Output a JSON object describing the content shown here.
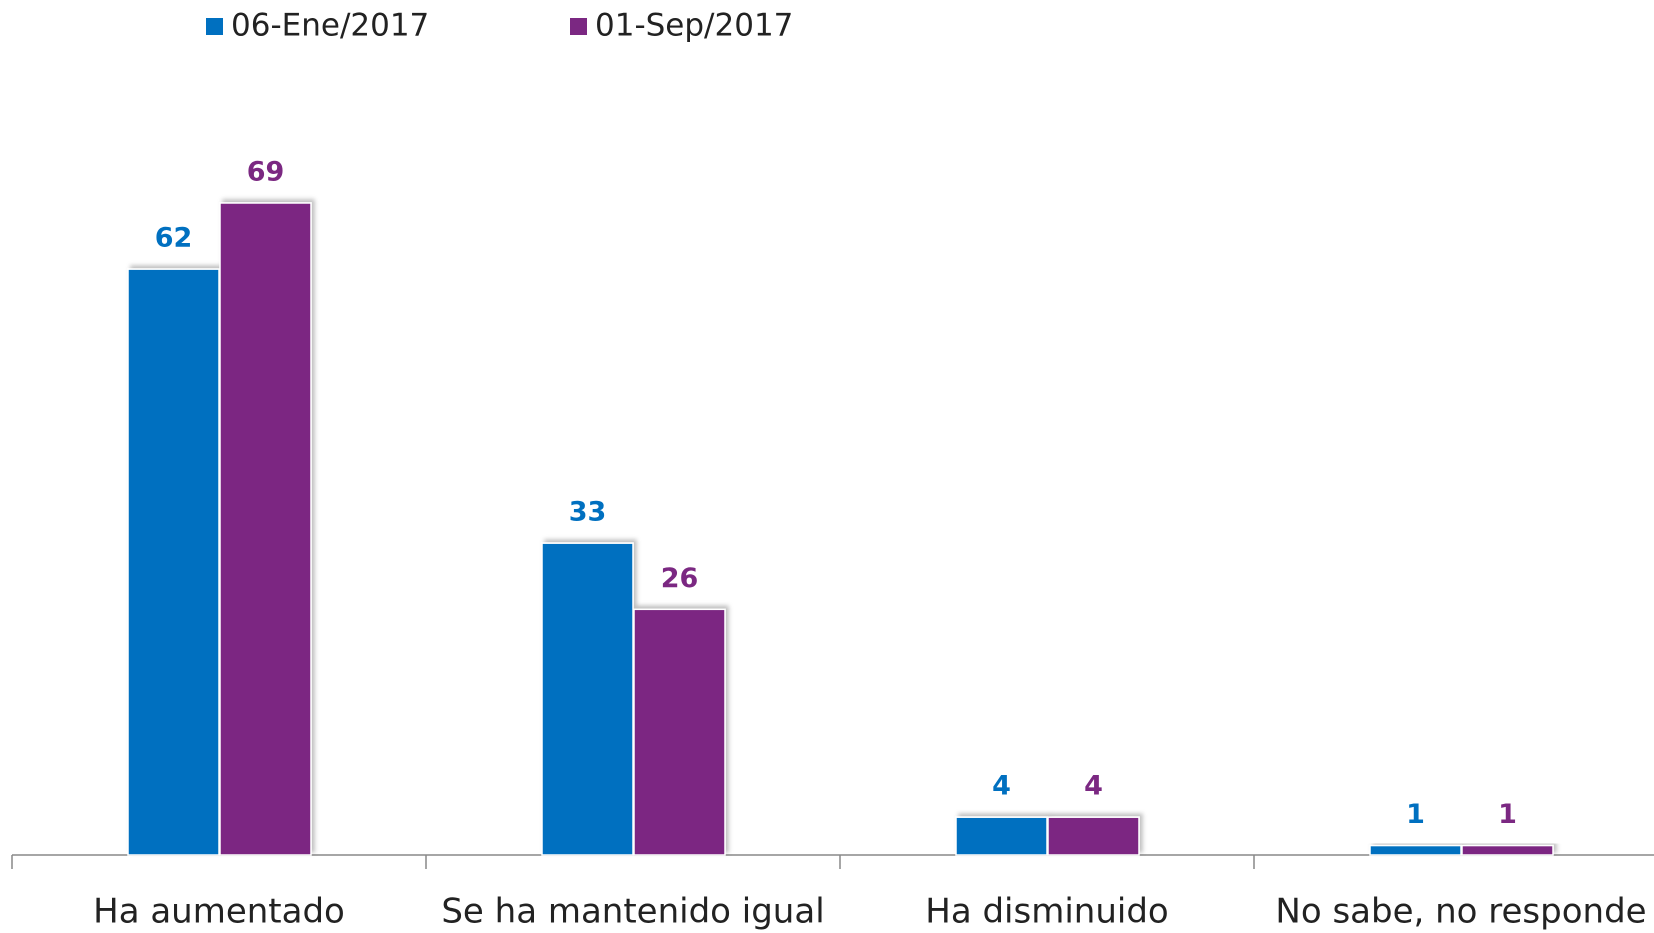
{
  "chart_data": {
    "type": "bar",
    "categories": [
      "Ha aumentado",
      "Se ha mantenido igual",
      "Ha disminuido",
      "No sabe, no responde"
    ],
    "series": [
      {
        "name": "06-Ene/2017",
        "color": "#0070C0",
        "values": [
          62,
          33,
          4,
          1
        ]
      },
      {
        "name": "01-Sep/2017",
        "color": "#7B2882",
        "values": [
          69,
          26,
          4,
          1
        ]
      }
    ]
  }
}
